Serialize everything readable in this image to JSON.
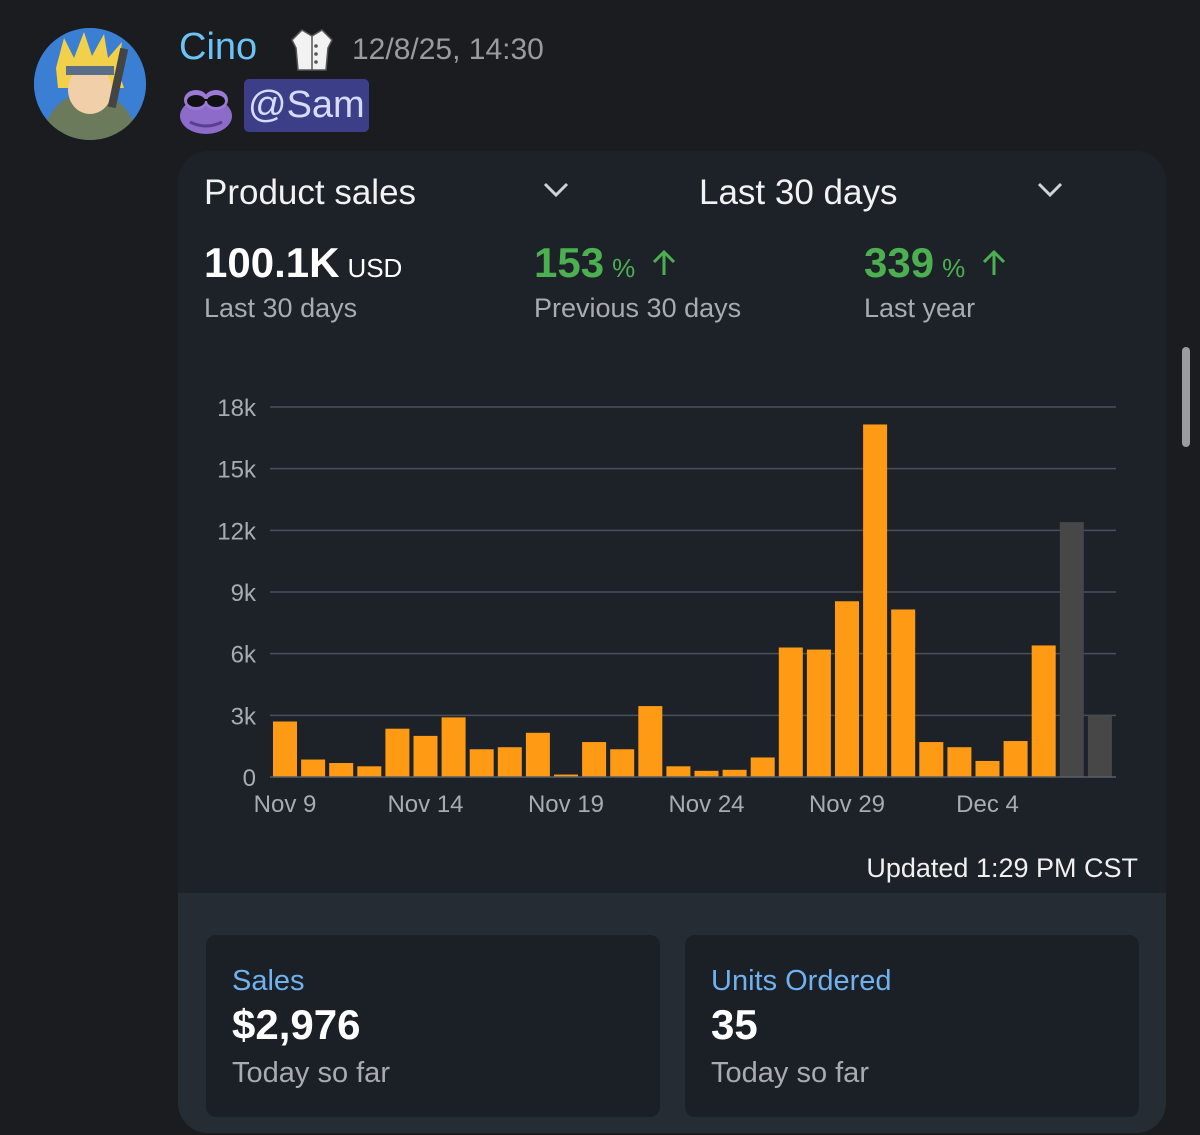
{
  "message": {
    "username": "Cino",
    "badge_icon": "lab-coat-icon",
    "timestamp": "12/8/25, 14:30",
    "emoji_icon": "frog-sunglasses-emoji",
    "mention": "@Sam"
  },
  "card": {
    "metric_dropdown": "Product sales",
    "range_dropdown": "Last 30 days",
    "metrics": {
      "total": {
        "value": "100.1K",
        "unit": "USD",
        "caption": "Last 30 days"
      },
      "prev": {
        "value": "153",
        "unit": "%",
        "caption": "Previous 30 days",
        "trend_icon": "arrow-up-icon"
      },
      "year": {
        "value": "339",
        "unit": "%",
        "caption": "Last year",
        "trend_icon": "arrow-up-icon"
      }
    },
    "updated": "Updated 1:29 PM CST",
    "stats": {
      "sales": {
        "label": "Sales",
        "value": "$2,976",
        "caption": "Today so far"
      },
      "units": {
        "label": "Units Ordered",
        "value": "35",
        "caption": "Today so far"
      }
    },
    "colors": {
      "bar": "#ff9a14",
      "bar_compare": "#474747",
      "positive": "#4caf50",
      "label": "#6fb2ef"
    }
  },
  "chart_data": {
    "type": "bar",
    "ylim": [
      0,
      18000
    ],
    "ytick_labels": [
      "0",
      "3k",
      "6k",
      "9k",
      "12k",
      "15k",
      "18k"
    ],
    "ytick_values": [
      0,
      3000,
      6000,
      9000,
      12000,
      15000,
      18000
    ],
    "xtick_labels": [
      "Nov 9",
      "Nov 14",
      "Nov 19",
      "Nov 24",
      "Nov 29",
      "Dec 4"
    ],
    "xtick_index": [
      0,
      5,
      10,
      15,
      20,
      25
    ],
    "grid": true,
    "series": [
      {
        "values": [
          2700,
          850,
          680,
          520,
          2350,
          2000,
          2900,
          1350,
          1450,
          2150,
          120,
          1700,
          1350,
          3450,
          520,
          300,
          350,
          950,
          6300,
          6200,
          8550,
          17150,
          8150,
          1700,
          1450,
          780,
          1750,
          6400
        ],
        "color": "#ff9a14"
      },
      {
        "values": [
          12400,
          3000
        ],
        "start_index": 28,
        "color": "#474747"
      }
    ]
  }
}
